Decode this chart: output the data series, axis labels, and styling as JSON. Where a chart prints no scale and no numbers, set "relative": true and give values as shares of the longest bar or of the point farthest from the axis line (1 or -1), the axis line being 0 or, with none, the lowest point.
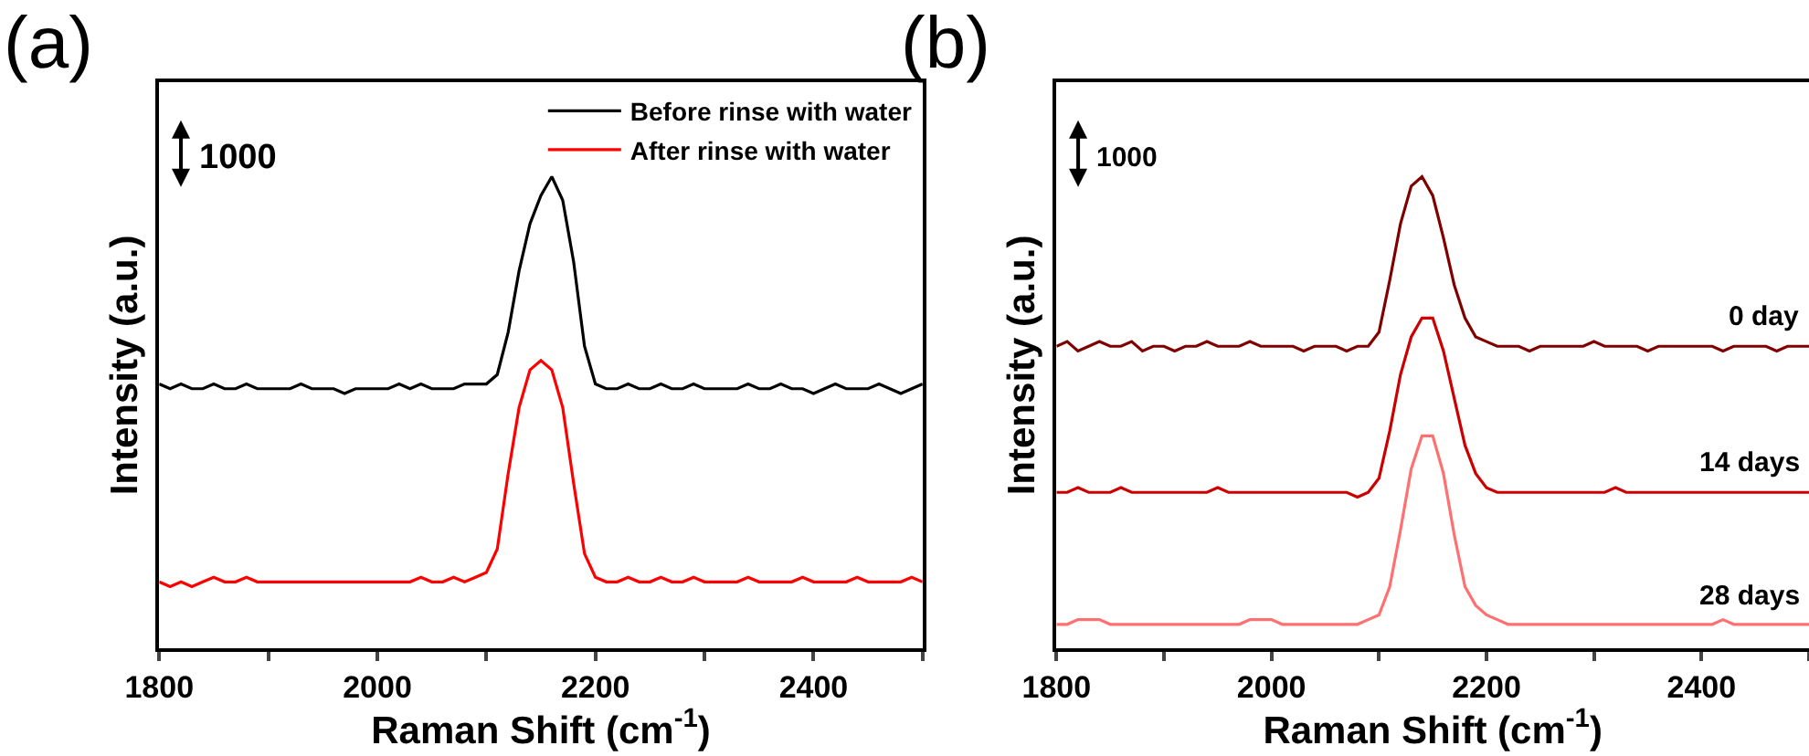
{
  "chart_data": [
    {
      "type": "line",
      "title": "(a)",
      "xlabel": "Raman Shift (cm$^{-1}$)",
      "ylabel": "Intensity (a.u.)",
      "relative": true,
      "legend": "top right",
      "line_style": "solid",
      "annotations": [
        "1000"
      ],
      "xlim": [
        1800,
        2500
      ],
      "xticks": [
        1800,
        {
          "value": 1900,
          "label": null
        },
        2000,
        {
          "value": 2100,
          "label": null
        },
        2200,
        {
          "value": 2300,
          "label": null
        },
        2400,
        {
          "value": 2500,
          "label": null
        }
      ],
      "x": [
        1800,
        1810,
        1820,
        1830,
        1840,
        1850,
        1860,
        1870,
        1880,
        1890,
        1900,
        1910,
        1920,
        1930,
        1940,
        1950,
        1960,
        1970,
        1980,
        1990,
        2000,
        2010,
        2020,
        2030,
        2040,
        2050,
        2060,
        2070,
        2080,
        2090,
        2100,
        2110,
        2120,
        2130,
        2140,
        2150,
        2160,
        2170,
        2180,
        2190,
        2200,
        2210,
        2220,
        2230,
        2240,
        2250,
        2260,
        2270,
        2280,
        2290,
        2300,
        2310,
        2320,
        2330,
        2340,
        2350,
        2360,
        2370,
        2380,
        2390,
        2400,
        2410,
        2420,
        2430,
        2440,
        2450,
        2460,
        2470,
        2480,
        2490,
        2500
      ],
      "series": [
        {
          "name": "Before rinse with water",
          "color": "#000000",
          "values": [
            0.56,
            0.55,
            0.56,
            0.55,
            0.55,
            0.56,
            0.55,
            0.55,
            0.56,
            0.55,
            0.55,
            0.55,
            0.55,
            0.56,
            0.55,
            0.55,
            0.55,
            0.54,
            0.55,
            0.55,
            0.55,
            0.55,
            0.56,
            0.55,
            0.56,
            0.55,
            0.55,
            0.55,
            0.56,
            0.56,
            0.56,
            0.58,
            0.67,
            0.8,
            0.9,
            0.96,
            1.0,
            0.95,
            0.82,
            0.64,
            0.56,
            0.55,
            0.55,
            0.56,
            0.55,
            0.55,
            0.56,
            0.55,
            0.55,
            0.56,
            0.55,
            0.55,
            0.55,
            0.55,
            0.56,
            0.55,
            0.55,
            0.56,
            0.55,
            0.55,
            0.54,
            0.55,
            0.56,
            0.55,
            0.55,
            0.55,
            0.56,
            0.55,
            0.54,
            0.55,
            0.56
          ]
        },
        {
          "name": "After rinse with water",
          "color": "#ff0000",
          "values": [
            0.14,
            0.13,
            0.14,
            0.13,
            0.14,
            0.15,
            0.14,
            0.14,
            0.15,
            0.14,
            0.14,
            0.14,
            0.14,
            0.14,
            0.14,
            0.14,
            0.14,
            0.14,
            0.14,
            0.14,
            0.14,
            0.14,
            0.14,
            0.14,
            0.15,
            0.14,
            0.14,
            0.15,
            0.14,
            0.15,
            0.16,
            0.21,
            0.37,
            0.51,
            0.59,
            0.61,
            0.59,
            0.51,
            0.35,
            0.2,
            0.15,
            0.14,
            0.14,
            0.15,
            0.14,
            0.14,
            0.15,
            0.14,
            0.14,
            0.15,
            0.14,
            0.14,
            0.14,
            0.14,
            0.15,
            0.14,
            0.14,
            0.14,
            0.14,
            0.15,
            0.14,
            0.14,
            0.14,
            0.14,
            0.15,
            0.14,
            0.14,
            0.14,
            0.14,
            0.15,
            0.14
          ]
        }
      ]
    },
    {
      "type": "line",
      "title": "(b)",
      "xlabel": "Raman Shift (cm$^{-1}$)",
      "ylabel": "Intensity (a.u.)",
      "relative": true,
      "legend": false,
      "line_style": "solid",
      "annotations": [
        "1000"
      ],
      "xlim": [
        1800,
        2500
      ],
      "xticks": [
        1800,
        {
          "value": 1900,
          "label": null
        },
        2000,
        {
          "value": 2100,
          "label": null
        },
        2200,
        {
          "value": 2300,
          "label": null
        },
        2400,
        {
          "value": 2500,
          "label": null
        }
      ],
      "x": [
        1800,
        1810,
        1820,
        1830,
        1840,
        1850,
        1860,
        1870,
        1880,
        1890,
        1900,
        1910,
        1920,
        1930,
        1940,
        1950,
        1960,
        1970,
        1980,
        1990,
        2000,
        2010,
        2020,
        2030,
        2040,
        2050,
        2060,
        2070,
        2080,
        2090,
        2100,
        2110,
        2120,
        2130,
        2140,
        2150,
        2160,
        2170,
        2180,
        2190,
        2200,
        2210,
        2220,
        2230,
        2240,
        2250,
        2260,
        2270,
        2280,
        2290,
        2300,
        2310,
        2320,
        2330,
        2340,
        2350,
        2360,
        2370,
        2380,
        2390,
        2400,
        2410,
        2420,
        2430,
        2440,
        2450,
        2460,
        2470,
        2480,
        2490,
        2500
      ],
      "series": [
        {
          "name": "0 day",
          "color": "#800000",
          "values": [
            0.64,
            0.65,
            0.63,
            0.64,
            0.65,
            0.64,
            0.64,
            0.65,
            0.63,
            0.64,
            0.64,
            0.63,
            0.64,
            0.64,
            0.65,
            0.64,
            0.64,
            0.64,
            0.65,
            0.64,
            0.64,
            0.64,
            0.64,
            0.63,
            0.64,
            0.64,
            0.64,
            0.63,
            0.64,
            0.64,
            0.67,
            0.78,
            0.9,
            0.98,
            1.0,
            0.96,
            0.87,
            0.77,
            0.7,
            0.66,
            0.65,
            0.64,
            0.64,
            0.64,
            0.63,
            0.64,
            0.64,
            0.64,
            0.64,
            0.64,
            0.65,
            0.64,
            0.64,
            0.64,
            0.64,
            0.63,
            0.64,
            0.64,
            0.64,
            0.64,
            0.64,
            0.64,
            0.63,
            0.64,
            0.64,
            0.64,
            0.64,
            0.63,
            0.64,
            0.64,
            0.64
          ]
        },
        {
          "name": "14 days",
          "color": "#cc0000",
          "values": [
            0.33,
            0.33,
            0.34,
            0.33,
            0.33,
            0.33,
            0.34,
            0.33,
            0.33,
            0.33,
            0.33,
            0.33,
            0.33,
            0.33,
            0.33,
            0.34,
            0.33,
            0.33,
            0.33,
            0.33,
            0.33,
            0.33,
            0.33,
            0.33,
            0.33,
            0.33,
            0.33,
            0.33,
            0.32,
            0.33,
            0.36,
            0.46,
            0.58,
            0.66,
            0.7,
            0.7,
            0.63,
            0.53,
            0.43,
            0.37,
            0.34,
            0.33,
            0.33,
            0.33,
            0.33,
            0.33,
            0.33,
            0.33,
            0.33,
            0.33,
            0.33,
            0.33,
            0.34,
            0.33,
            0.33,
            0.33,
            0.33,
            0.33,
            0.33,
            0.33,
            0.33,
            0.33,
            0.33,
            0.33,
            0.33,
            0.33,
            0.33,
            0.33,
            0.33,
            0.33,
            0.33
          ]
        },
        {
          "name": "28 days",
          "color": "#ff7070",
          "values": [
            0.05,
            0.05,
            0.06,
            0.06,
            0.06,
            0.05,
            0.05,
            0.05,
            0.05,
            0.05,
            0.05,
            0.05,
            0.05,
            0.05,
            0.05,
            0.05,
            0.05,
            0.05,
            0.06,
            0.06,
            0.06,
            0.05,
            0.05,
            0.05,
            0.05,
            0.05,
            0.05,
            0.05,
            0.05,
            0.06,
            0.07,
            0.13,
            0.25,
            0.38,
            0.45,
            0.45,
            0.37,
            0.24,
            0.13,
            0.09,
            0.07,
            0.06,
            0.05,
            0.05,
            0.05,
            0.05,
            0.05,
            0.05,
            0.05,
            0.05,
            0.05,
            0.05,
            0.05,
            0.05,
            0.05,
            0.05,
            0.05,
            0.05,
            0.05,
            0.05,
            0.05,
            0.05,
            0.06,
            0.05,
            0.05,
            0.05,
            0.05,
            0.05,
            0.05,
            0.05,
            0.05
          ]
        }
      ]
    }
  ]
}
